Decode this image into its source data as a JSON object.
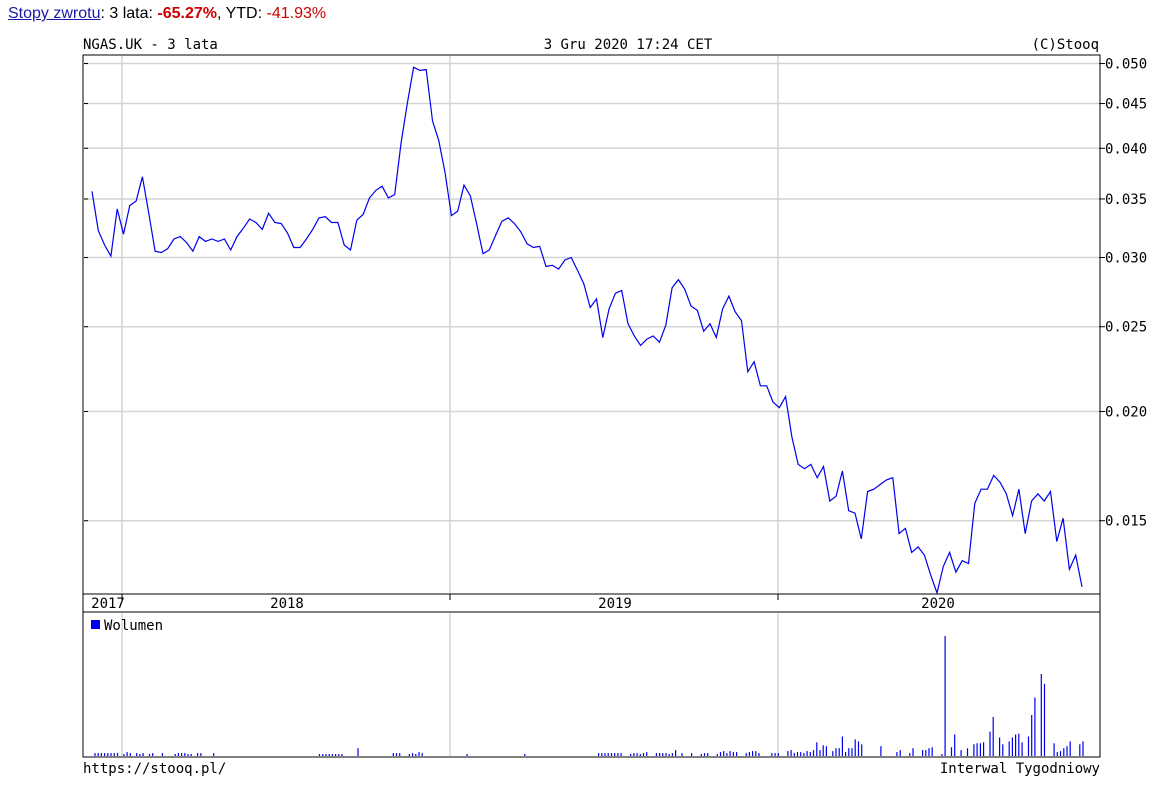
{
  "summary": {
    "link_label": "Stopy zwrotu",
    "period_label": "3 lata",
    "period_return": "-65.27%",
    "ytd_label": "YTD",
    "ytd_return": "-41.93%"
  },
  "chart_header": {
    "left": "NGAS.UK - 3 lata",
    "center": "3 Gru 2020 17:24 CET",
    "right": "(C)Stooq"
  },
  "footer": {
    "left": "https://stooq.pl/",
    "right": "Interwal Tygodniowy"
  },
  "colors": {
    "price_line": "#0000ee",
    "volume_bar": "#0000ee",
    "negative_text": "#cc0000",
    "link": "#1a1aa6",
    "grid": "#d4d4d4"
  },
  "chart_data": {
    "type": "line",
    "title": "NGAS.UK - 3 lata",
    "y_scale": "log",
    "ylim": [
      0.0124,
      0.051
    ],
    "yticks": [
      0.015,
      0.02,
      0.025,
      0.03,
      0.035,
      0.04,
      0.045,
      0.05
    ],
    "ytick_labels": [
      "0.015",
      "0.020",
      "0.025",
      "0.030",
      "0.035",
      "0.040",
      "0.045",
      "0.050"
    ],
    "x_labels": [
      "2017",
      "2018",
      "2019",
      "2020"
    ],
    "grid": true,
    "series": [
      {
        "values": [
          0.0357,
          0.0322,
          0.031,
          0.0301,
          0.0341,
          0.0319,
          0.0344,
          0.0348,
          0.0371,
          0.0337,
          0.0305,
          0.0304,
          0.0307,
          0.0315,
          0.0317,
          0.0312,
          0.0305,
          0.0317,
          0.0313,
          0.0315,
          0.0313,
          0.0315,
          0.0306,
          0.0317,
          0.0324,
          0.0332,
          0.0329,
          0.0323,
          0.0337,
          0.0329,
          0.0328,
          0.032,
          0.0308,
          0.0308,
          0.0315,
          0.0323,
          0.0333,
          0.0334,
          0.0329,
          0.0329,
          0.031,
          0.0306,
          0.0331,
          0.0336,
          0.0351,
          0.0358,
          0.0362,
          0.0351,
          0.0354,
          0.0405,
          0.045,
          0.0495,
          0.0491,
          0.0492,
          0.043,
          0.0408,
          0.0375,
          0.0335,
          0.0339,
          0.0363,
          0.0353,
          0.0328,
          0.0303,
          0.0306,
          0.0318,
          0.033,
          0.0333,
          0.0328,
          0.0321,
          0.0311,
          0.0308,
          0.0309,
          0.0293,
          0.0294,
          0.0291,
          0.0298,
          0.03,
          0.029,
          0.028,
          0.0263,
          0.0269,
          0.0243,
          0.0262,
          0.0273,
          0.0275,
          0.0252,
          0.0244,
          0.0238,
          0.0242,
          0.0244,
          0.024,
          0.0251,
          0.0277,
          0.0283,
          0.0276,
          0.0264,
          0.0261,
          0.0247,
          0.0252,
          0.0243,
          0.0262,
          0.0271,
          0.026,
          0.0254,
          0.0222,
          0.0228,
          0.0214,
          0.0214,
          0.0205,
          0.0202,
          0.0208,
          0.0187,
          0.0174,
          0.0172,
          0.0174,
          0.0168,
          0.0173,
          0.0158,
          0.016,
          0.0171,
          0.0154,
          0.0153,
          0.0143,
          0.0162,
          0.0163,
          0.0165,
          0.0167,
          0.0168,
          0.0145,
          0.0147,
          0.0138,
          0.014,
          0.0137,
          0.013,
          0.0124,
          0.0133,
          0.0138,
          0.0131,
          0.0135,
          0.0134,
          0.0157,
          0.0163,
          0.0163,
          0.0169,
          0.0166,
          0.0161,
          0.0152,
          0.0163,
          0.0145,
          0.0158,
          0.0161,
          0.0158,
          0.0162,
          0.0142,
          0.0151,
          0.0132,
          0.0137,
          0.0126
        ]
      }
    ],
    "volume": {
      "label": "Wolumen",
      "values": [
        3,
        3,
        3,
        3,
        3,
        3,
        3,
        3,
        0,
        2,
        4,
        3,
        0,
        3,
        2,
        3,
        0,
        2,
        3,
        0,
        0,
        3,
        0,
        0,
        0,
        2,
        3,
        3,
        3,
        2,
        2,
        0,
        3,
        3,
        0,
        0,
        0,
        3,
        0,
        0,
        0,
        0,
        0,
        0,
        0,
        0,
        0,
        0,
        0,
        0,
        0,
        0,
        0,
        0,
        0,
        0,
        0,
        0,
        0,
        0,
        0,
        0,
        0,
        0,
        0,
        0,
        0,
        0,
        0,
        0,
        2,
        2,
        2,
        2,
        2,
        2,
        2,
        2,
        0,
        0,
        0,
        0,
        8,
        0,
        0,
        0,
        0,
        0,
        0,
        0,
        0,
        0,
        0,
        3,
        3,
        3,
        0,
        0,
        2,
        3,
        2,
        4,
        3,
        0,
        0,
        0,
        0,
        0,
        0,
        0,
        0,
        0,
        0,
        0,
        0,
        0,
        2,
        0,
        0,
        0,
        0,
        0,
        0,
        0,
        0,
        0,
        0,
        0,
        0,
        0,
        0,
        0,
        0,
        0,
        2,
        0,
        0,
        0,
        0,
        0,
        0,
        0,
        0,
        0,
        0,
        0,
        0,
        0,
        0,
        0,
        0,
        0,
        0,
        0,
        0,
        0,
        0,
        3,
        3,
        3,
        3,
        3,
        3,
        3,
        3,
        0,
        0,
        2,
        3,
        3,
        2,
        3,
        4,
        0,
        0,
        3,
        3,
        3,
        3,
        2,
        3,
        6,
        0,
        3,
        0,
        0,
        3,
        0,
        0,
        2,
        3,
        3,
        0,
        0,
        2,
        4,
        5,
        3,
        5,
        4,
        4,
        0,
        0,
        3,
        4,
        5,
        5,
        3,
        0,
        0,
        0,
        3,
        3,
        3,
        0,
        0,
        5,
        6,
        3,
        4,
        4,
        3,
        5,
        4,
        6,
        14,
        6,
        11,
        10,
        0,
        5,
        8,
        8,
        20,
        4,
        8,
        8,
        17,
        15,
        12,
        0,
        0,
        0,
        0,
        0,
        10,
        0,
        0,
        0,
        0,
        4,
        6,
        0,
        0,
        3,
        8,
        0,
        0,
        6,
        6,
        8,
        9,
        0,
        0,
        2,
        123,
        0,
        9,
        22,
        0,
        6,
        0,
        8,
        0,
        12,
        13,
        13,
        14,
        0,
        25,
        40,
        0,
        19,
        12,
        0,
        15,
        19,
        22,
        23,
        14,
        0,
        20,
        42,
        60,
        0,
        84,
        74,
        0,
        0,
        13,
        4,
        5,
        8,
        10,
        15,
        0,
        0,
        12,
        15
      ]
    }
  }
}
